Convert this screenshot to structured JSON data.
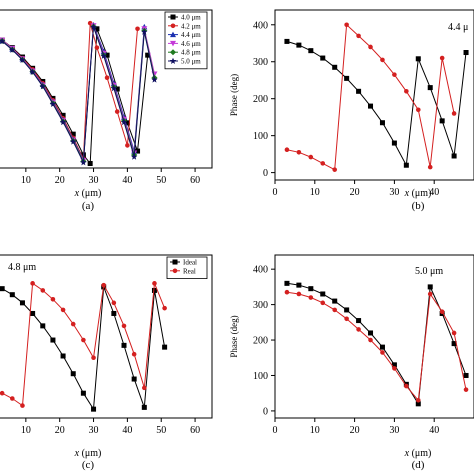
{
  "chart_data": [
    {
      "panel": "(a)",
      "type": "line",
      "xlabel_main": "x",
      "xlabel_unit": " (μm)",
      "xlim": [
        0,
        65
      ],
      "ylim": [
        0,
        420
      ],
      "xticks": [
        "10",
        "20",
        "30",
        "40",
        "50",
        "60"
      ],
      "caption": "(a)",
      "legend_position": "top-right",
      "series": [
        {
          "name": "4.0 μm",
          "color": "#000000",
          "marker": "square",
          "x": [
            0,
            3,
            6,
            9,
            12,
            15,
            18,
            21,
            24,
            27,
            29,
            31,
            34,
            37,
            40,
            43,
            46
          ],
          "y": [
            350,
            340,
            320,
            295,
            265,
            230,
            185,
            140,
            90,
            35,
            12,
            370,
            300,
            210,
            120,
            45,
            300
          ]
        },
        {
          "name": "4.2 μm",
          "color": "#d42020",
          "marker": "circle",
          "x": [
            0,
            3,
            6,
            9,
            12,
            15,
            18,
            21,
            24,
            27,
            29,
            31,
            34,
            37,
            40,
            43
          ],
          "y": [
            350,
            340,
            318,
            292,
            262,
            225,
            180,
            132,
            80,
            25,
            385,
            320,
            240,
            150,
            60,
            370
          ]
        },
        {
          "name": "4.4 μm",
          "color": "#1a2fb0",
          "marker": "triangle",
          "x": [
            0,
            3,
            6,
            9,
            12,
            15,
            18,
            21,
            24,
            27,
            30,
            33,
            36,
            39,
            42,
            45
          ],
          "y": [
            350,
            338,
            316,
            290,
            258,
            222,
            176,
            128,
            76,
            22,
            380,
            310,
            225,
            135,
            45,
            375
          ]
        },
        {
          "name": "4.6 μm",
          "color": "#c43ad8",
          "marker": "triangle-down",
          "x": [
            0,
            3,
            6,
            9,
            12,
            15,
            18,
            21,
            24,
            27,
            30,
            33,
            36,
            39,
            42,
            45,
            48
          ],
          "y": [
            352,
            340,
            318,
            290,
            258,
            220,
            175,
            126,
            74,
            20,
            378,
            305,
            220,
            130,
            40,
            370,
            250
          ]
        },
        {
          "name": "4.8 μm",
          "color": "#1f7a1f",
          "marker": "diamond",
          "x": [
            0,
            3,
            6,
            9,
            12,
            15,
            18,
            21,
            24,
            27,
            30,
            33,
            36,
            39,
            42,
            45,
            48
          ],
          "y": [
            350,
            338,
            315,
            288,
            256,
            218,
            172,
            124,
            72,
            18,
            376,
            300,
            215,
            125,
            35,
            365,
            240
          ]
        },
        {
          "name": "5.0 μm",
          "color": "#101060",
          "marker": "star",
          "x": [
            0,
            3,
            6,
            9,
            12,
            15,
            18,
            21,
            24,
            27,
            30,
            33,
            36,
            39,
            42,
            45,
            48
          ],
          "y": [
            350,
            337,
            314,
            287,
            255,
            217,
            170,
            122,
            70,
            15,
            375,
            298,
            212,
            122,
            30,
            362,
            235
          ]
        }
      ]
    },
    {
      "panel": "(b)",
      "type": "line",
      "ylabel": "Phase (deg)",
      "xlabel_main": "x",
      "xlabel_unit": " (μm)",
      "xlim": [
        0,
        50
      ],
      "ylim": [
        -20,
        440
      ],
      "xticks": [
        "0",
        "10",
        "20",
        "30",
        "40"
      ],
      "yticks": [
        "0",
        "100",
        "200",
        "300",
        "400"
      ],
      "annotation": "4.4 μ",
      "caption": "(b)",
      "series": [
        {
          "color": "#000000",
          "marker": "square",
          "x": [
            3,
            6,
            9,
            12,
            15,
            18,
            21,
            24,
            27,
            30,
            33,
            36,
            39,
            42,
            45,
            48
          ],
          "y": [
            355,
            345,
            330,
            310,
            285,
            255,
            220,
            180,
            135,
            80,
            20,
            308,
            230,
            140,
            45,
            325
          ]
        },
        {
          "color": "#d42020",
          "marker": "circle",
          "x": [
            3,
            6,
            9,
            12,
            15,
            18,
            21,
            24,
            27,
            30,
            33,
            36,
            39,
            42,
            45
          ],
          "y": [
            62,
            55,
            42,
            25,
            8,
            400,
            370,
            340,
            305,
            265,
            220,
            170,
            15,
            310,
            160
          ]
        }
      ]
    },
    {
      "panel": "(c)",
      "type": "line",
      "annotation": "4.8 μm",
      "xlabel_main": "x",
      "xlabel_unit": " (μm)",
      "xlim": [
        0,
        65
      ],
      "ylim": [
        -20,
        440
      ],
      "xticks": [
        "10",
        "20",
        "30",
        "40",
        "50",
        "60"
      ],
      "caption": "(c)",
      "legend_position": "top-right",
      "series": [
        {
          "name": "Ideal",
          "color": "#000000",
          "marker": "square",
          "x": [
            0,
            3,
            6,
            9,
            12,
            15,
            18,
            21,
            24,
            27,
            30,
            33,
            36,
            39,
            42,
            45,
            48,
            51
          ],
          "y": [
            355,
            345,
            328,
            305,
            275,
            240,
            200,
            155,
            105,
            50,
            5,
            350,
            275,
            185,
            90,
            10,
            340,
            180
          ]
        },
        {
          "name": "Real",
          "color": "#d42020",
          "marker": "circle",
          "x": [
            0,
            3,
            6,
            9,
            12,
            15,
            18,
            21,
            24,
            27,
            30,
            33,
            36,
            39,
            42,
            45,
            48,
            51
          ],
          "y": [
            60,
            50,
            35,
            15,
            360,
            340,
            315,
            285,
            245,
            200,
            150,
            355,
            305,
            240,
            160,
            65,
            360,
            290
          ]
        }
      ]
    },
    {
      "panel": "(d)",
      "type": "line",
      "ylabel": "Phase (deg)",
      "xlabel_main": "x",
      "xlabel_unit": " (μm)",
      "xlim": [
        0,
        50
      ],
      "ylim": [
        -20,
        440
      ],
      "xticks": [
        "0",
        "10",
        "20",
        "30",
        "40"
      ],
      "yticks": [
        "0",
        "100",
        "200",
        "300",
        "400"
      ],
      "annotation": "5.0 μm",
      "caption": "(d)",
      "series": [
        {
          "color": "#000000",
          "marker": "square",
          "x": [
            3,
            6,
            9,
            12,
            15,
            18,
            21,
            24,
            27,
            30,
            33,
            36,
            39,
            42,
            45,
            48
          ],
          "y": [
            360,
            355,
            345,
            330,
            310,
            285,
            255,
            220,
            180,
            130,
            75,
            20,
            350,
            275,
            190,
            100
          ]
        },
        {
          "color": "#d42020",
          "marker": "circle",
          "x": [
            3,
            6,
            9,
            12,
            15,
            18,
            21,
            24,
            27,
            30,
            33,
            36,
            39,
            42,
            45,
            48
          ],
          "y": [
            335,
            330,
            320,
            305,
            285,
            260,
            230,
            200,
            165,
            120,
            70,
            30,
            330,
            280,
            220,
            60
          ]
        }
      ]
    }
  ]
}
